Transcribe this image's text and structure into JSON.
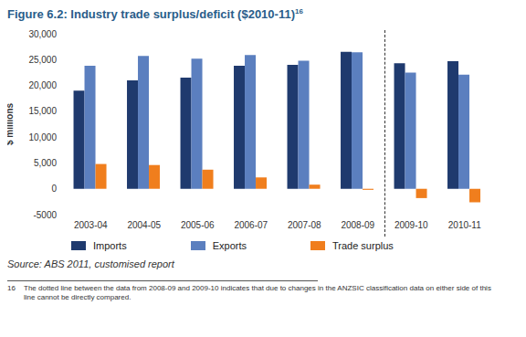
{
  "chart_data": {
    "type": "bar",
    "title": "Figure 6.2: Industry trade surplus/deficit ($2010-11)",
    "title_superscript": "16",
    "y_label": "$ millions",
    "categories": [
      "2003-04",
      "2004-05",
      "2005-06",
      "2006-07",
      "2007-08",
      "2008-09",
      "2009-10",
      "2010-11"
    ],
    "series": [
      {
        "name": "Imports",
        "color": "#1f3a6e",
        "values": [
          19000,
          21000,
          21500,
          23800,
          24000,
          26500,
          24300,
          24700
        ]
      },
      {
        "name": "Exports",
        "color": "#5b7fbf",
        "values": [
          23800,
          25700,
          25200,
          25900,
          24800,
          26400,
          22500,
          22100
        ]
      },
      {
        "name": "Trade surplus",
        "color": "#f07e1d",
        "values": [
          4800,
          4600,
          3700,
          2200,
          800,
          -200,
          -1800,
          -2600
        ]
      }
    ],
    "ylim": [
      -5000,
      30000
    ],
    "yticks": [
      -5000,
      0,
      {
        "value": 5000,
        "label": "5,000"
      },
      {
        "value": 10000,
        "label": "10,000"
      },
      {
        "value": 15000,
        "label": "15,000"
      },
      {
        "value": 20000,
        "label": "20,000"
      },
      {
        "value": 25000,
        "label": "25,000"
      },
      {
        "value": 30000,
        "label": "30,000"
      }
    ],
    "grid": false,
    "legend": "bottom",
    "source": "Source: ABS 2011, customised report",
    "footnote": {
      "number": "16",
      "text": "The dotted line between the data from 2008-09 and 2009-10 indicates that due to changes in the ANZSIC classification data on either side of this line cannot be directly compared."
    }
  }
}
